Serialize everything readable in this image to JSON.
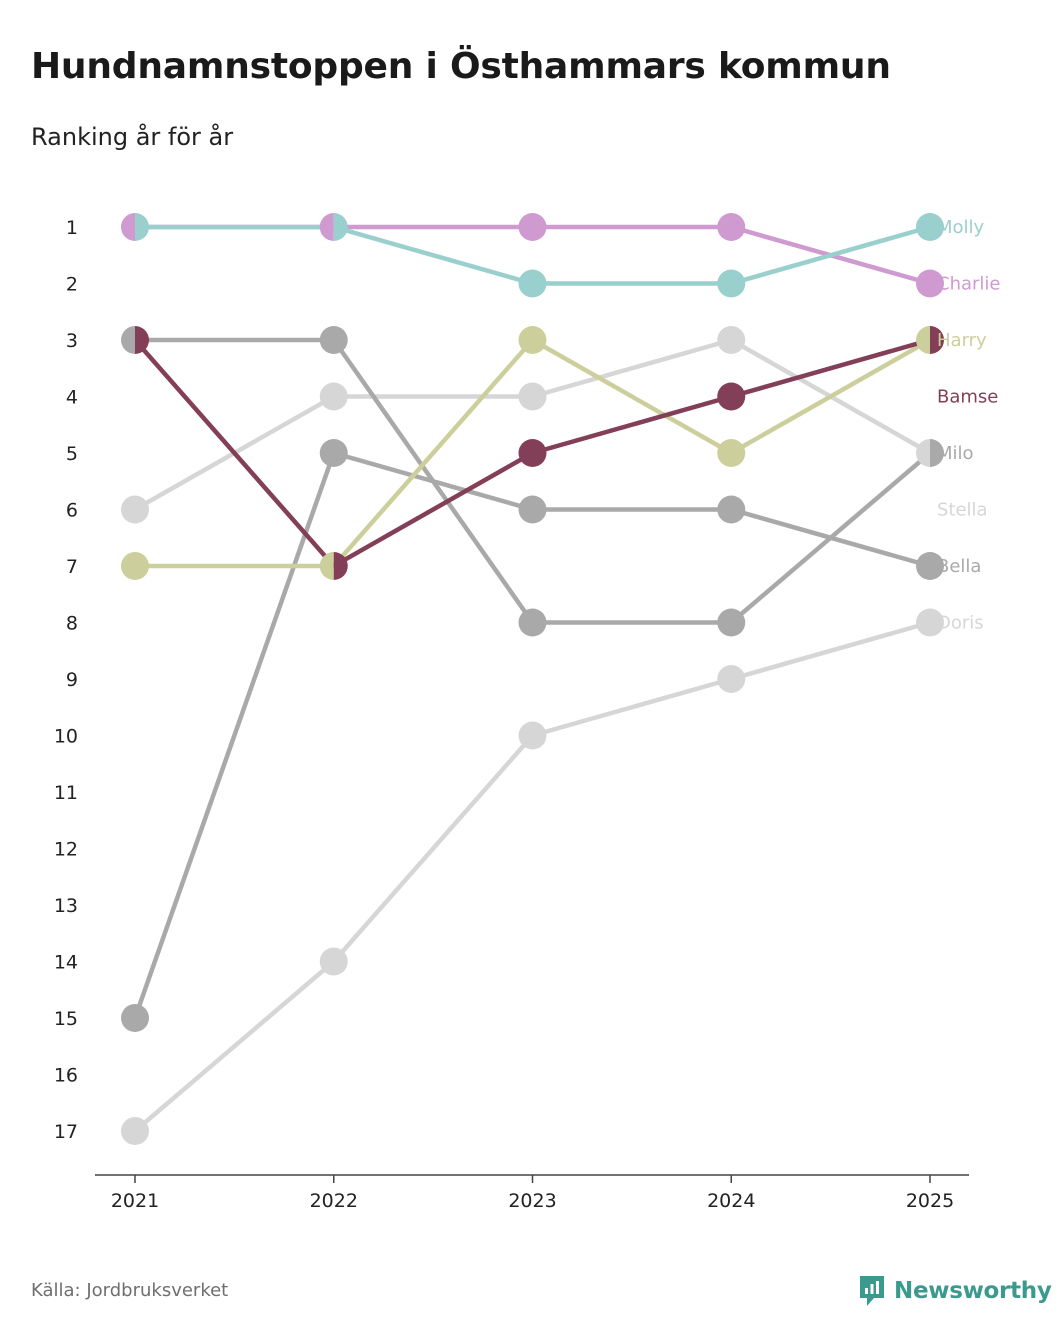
{
  "title": "Hundnamnstoppen i Östhammars kommun",
  "subtitle": "Ranking år för år",
  "source": "Källa: Jordbruksverket",
  "brand": "Newsworthy",
  "brand_color": "#3a9a8e",
  "chart_data": {
    "type": "line",
    "chart_style": "bump",
    "years": [
      "2021",
      "2022",
      "2023",
      "2024",
      "2025"
    ],
    "y_ticks": [
      1,
      2,
      3,
      4,
      5,
      6,
      7,
      8,
      9,
      10,
      11,
      12,
      13,
      14,
      15,
      16,
      17
    ],
    "y_reversed": true,
    "series": [
      {
        "name": "Doris",
        "color": "#d6d6d6",
        "values": [
          17,
          14,
          10,
          9,
          8
        ]
      },
      {
        "name": "Bella",
        "color": "#a9a9a9",
        "values": [
          15,
          5,
          6,
          6,
          7
        ]
      },
      {
        "name": "Stella",
        "color": "#d6d6d6",
        "values": [
          6,
          4,
          4,
          3,
          5
        ]
      },
      {
        "name": "Milo",
        "color": "#a9a9a9",
        "values": [
          3,
          3,
          8,
          8,
          5
        ]
      },
      {
        "name": "Harry",
        "color": "#cccf9b",
        "values": [
          7,
          7,
          3,
          5,
          3
        ]
      },
      {
        "name": "Bamse",
        "color": "#833f57",
        "values": [
          3,
          7,
          5,
          4,
          3
        ]
      },
      {
        "name": "Charlie",
        "color": "#cf9ad0",
        "values": [
          1,
          1,
          1,
          1,
          2
        ]
      },
      {
        "name": "Molly",
        "color": "#99cfcc",
        "values": [
          1,
          1,
          2,
          2,
          1
        ]
      }
    ],
    "label_order": [
      "Molly",
      "Charlie",
      "Harry",
      "Bamse",
      "Milo",
      "Stella",
      "Bella",
      "Doris"
    ]
  }
}
